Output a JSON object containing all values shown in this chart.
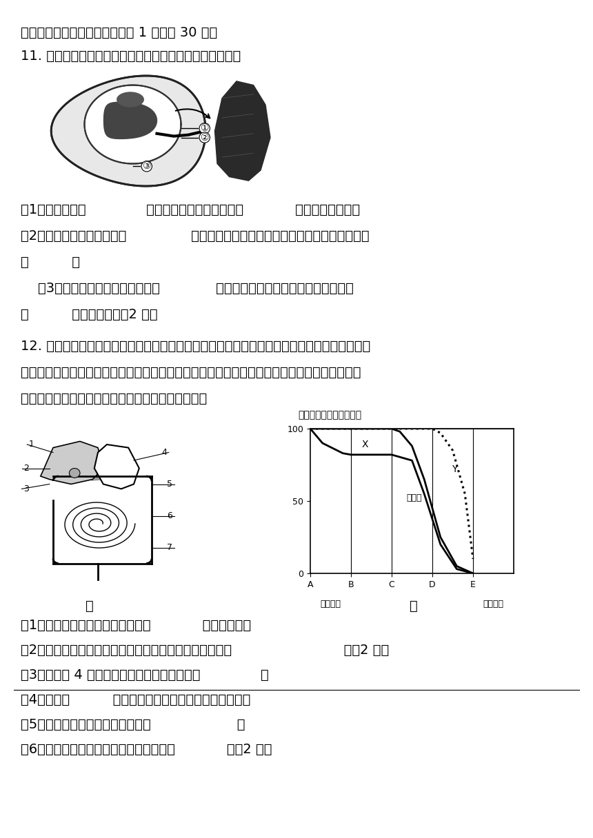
{
  "bg_color": "#ffffff",
  "title_section": "二、填空题（除特别注明外每空 1 分，共 30 分）",
  "q11_header": "11. 下图所示是子宫内胎儿、脐带和胎盘结构图，请填空：",
  "q11_q1": "（1）受精卵是在              中形成后，不断地进行细胞            、分化形成胚胎。",
  "q11_q2_a": "（2）胚胎发育的最终场所是               ，当其发育成熟后就从母体阴道产出，这个过程叫",
  "q11_q2_b": "做          。",
  "q11_q3_a": "    （3）胚胎发育早期所需的营养由             提供，胎儿与母体进行物质交换的场所",
  "q11_q3_b": "是          。（填标号）（2 分）",
  "q12_header_a": "12. 牛肉面色香味美、营养丰富，早上吃下一碗牛肉面，其中的主要营养物质在人体消化道经过",
  "q12_header_b": "一段神奇旅程，最终被消化成小分子营养成分。如图甲是人体消化系统示意图，图乙是淀粉、蛋",
  "q12_header_c": "白质、脂肪被消化程度示意图。据图回答下列问题：",
  "graph_title": "未被消化营养物质百分比",
  "x_label_left": "（口腔）",
  "x_label_right": "（大肠）",
  "label_X": "X",
  "label_Y": "Y",
  "label_baizhi": "蛋白质",
  "jia_label": "甲",
  "yi_label": "乙",
  "q12_q1": "（1）图乙中消化食物的主要场所是            。（填字母）",
  "q12_q2": "（2）面条的主要成分是淀粉，参与消化淀粉的消化液包括                          。（2 分）",
  "q12_q3": "（3）图甲中 4 分泌的胃液能初步消化牛肉中的              。",
  "q12_q4": "（4）图甲中          分泌的消化液不含消化酶。（填数字）",
  "q12_q5": "（5）牛肉面中的脂肪最终被分解成                    。",
  "q12_q6": "（6）图乙中能代表脂肪消化过程的曲线是            。（2 分）",
  "font_size_main": 14,
  "font_size_small": 11
}
